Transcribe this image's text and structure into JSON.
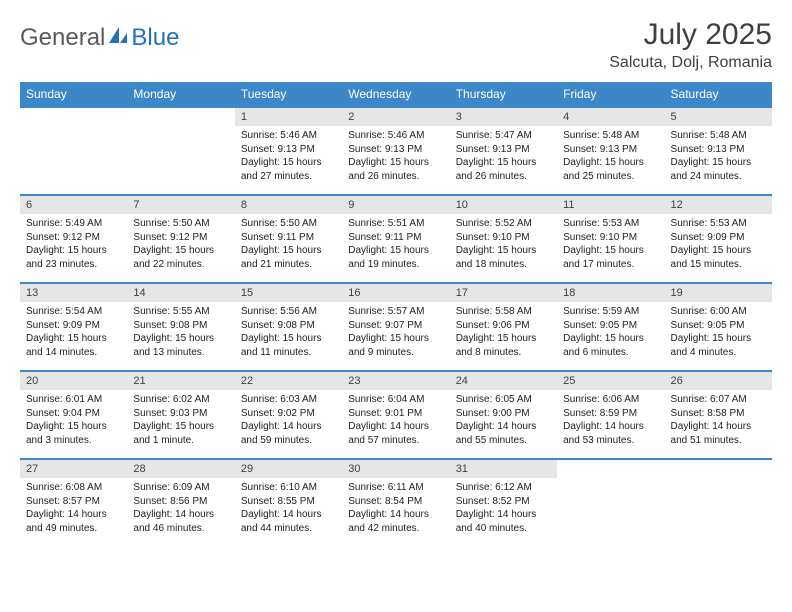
{
  "brand": {
    "general": "General",
    "blue": "Blue"
  },
  "title": "July 2025",
  "location": "Salcuta, Dolj, Romania",
  "colors": {
    "header_bg": "#3b87c8",
    "daynum_bg": "#e6e6e6",
    "text": "#404040",
    "logo_blue": "#2472b8"
  },
  "day_headers": [
    "Sunday",
    "Monday",
    "Tuesday",
    "Wednesday",
    "Thursday",
    "Friday",
    "Saturday"
  ],
  "weeks": [
    [
      null,
      null,
      {
        "n": "1",
        "sr": "Sunrise: 5:46 AM",
        "ss": "Sunset: 9:13 PM",
        "d1": "Daylight: 15 hours",
        "d2": "and 27 minutes."
      },
      {
        "n": "2",
        "sr": "Sunrise: 5:46 AM",
        "ss": "Sunset: 9:13 PM",
        "d1": "Daylight: 15 hours",
        "d2": "and 26 minutes."
      },
      {
        "n": "3",
        "sr": "Sunrise: 5:47 AM",
        "ss": "Sunset: 9:13 PM",
        "d1": "Daylight: 15 hours",
        "d2": "and 26 minutes."
      },
      {
        "n": "4",
        "sr": "Sunrise: 5:48 AM",
        "ss": "Sunset: 9:13 PM",
        "d1": "Daylight: 15 hours",
        "d2": "and 25 minutes."
      },
      {
        "n": "5",
        "sr": "Sunrise: 5:48 AM",
        "ss": "Sunset: 9:13 PM",
        "d1": "Daylight: 15 hours",
        "d2": "and 24 minutes."
      }
    ],
    [
      {
        "n": "6",
        "sr": "Sunrise: 5:49 AM",
        "ss": "Sunset: 9:12 PM",
        "d1": "Daylight: 15 hours",
        "d2": "and 23 minutes."
      },
      {
        "n": "7",
        "sr": "Sunrise: 5:50 AM",
        "ss": "Sunset: 9:12 PM",
        "d1": "Daylight: 15 hours",
        "d2": "and 22 minutes."
      },
      {
        "n": "8",
        "sr": "Sunrise: 5:50 AM",
        "ss": "Sunset: 9:11 PM",
        "d1": "Daylight: 15 hours",
        "d2": "and 21 minutes."
      },
      {
        "n": "9",
        "sr": "Sunrise: 5:51 AM",
        "ss": "Sunset: 9:11 PM",
        "d1": "Daylight: 15 hours",
        "d2": "and 19 minutes."
      },
      {
        "n": "10",
        "sr": "Sunrise: 5:52 AM",
        "ss": "Sunset: 9:10 PM",
        "d1": "Daylight: 15 hours",
        "d2": "and 18 minutes."
      },
      {
        "n": "11",
        "sr": "Sunrise: 5:53 AM",
        "ss": "Sunset: 9:10 PM",
        "d1": "Daylight: 15 hours",
        "d2": "and 17 minutes."
      },
      {
        "n": "12",
        "sr": "Sunrise: 5:53 AM",
        "ss": "Sunset: 9:09 PM",
        "d1": "Daylight: 15 hours",
        "d2": "and 15 minutes."
      }
    ],
    [
      {
        "n": "13",
        "sr": "Sunrise: 5:54 AM",
        "ss": "Sunset: 9:09 PM",
        "d1": "Daylight: 15 hours",
        "d2": "and 14 minutes."
      },
      {
        "n": "14",
        "sr": "Sunrise: 5:55 AM",
        "ss": "Sunset: 9:08 PM",
        "d1": "Daylight: 15 hours",
        "d2": "and 13 minutes."
      },
      {
        "n": "15",
        "sr": "Sunrise: 5:56 AM",
        "ss": "Sunset: 9:08 PM",
        "d1": "Daylight: 15 hours",
        "d2": "and 11 minutes."
      },
      {
        "n": "16",
        "sr": "Sunrise: 5:57 AM",
        "ss": "Sunset: 9:07 PM",
        "d1": "Daylight: 15 hours",
        "d2": "and 9 minutes."
      },
      {
        "n": "17",
        "sr": "Sunrise: 5:58 AM",
        "ss": "Sunset: 9:06 PM",
        "d1": "Daylight: 15 hours",
        "d2": "and 8 minutes."
      },
      {
        "n": "18",
        "sr": "Sunrise: 5:59 AM",
        "ss": "Sunset: 9:05 PM",
        "d1": "Daylight: 15 hours",
        "d2": "and 6 minutes."
      },
      {
        "n": "19",
        "sr": "Sunrise: 6:00 AM",
        "ss": "Sunset: 9:05 PM",
        "d1": "Daylight: 15 hours",
        "d2": "and 4 minutes."
      }
    ],
    [
      {
        "n": "20",
        "sr": "Sunrise: 6:01 AM",
        "ss": "Sunset: 9:04 PM",
        "d1": "Daylight: 15 hours",
        "d2": "and 3 minutes."
      },
      {
        "n": "21",
        "sr": "Sunrise: 6:02 AM",
        "ss": "Sunset: 9:03 PM",
        "d1": "Daylight: 15 hours",
        "d2": "and 1 minute."
      },
      {
        "n": "22",
        "sr": "Sunrise: 6:03 AM",
        "ss": "Sunset: 9:02 PM",
        "d1": "Daylight: 14 hours",
        "d2": "and 59 minutes."
      },
      {
        "n": "23",
        "sr": "Sunrise: 6:04 AM",
        "ss": "Sunset: 9:01 PM",
        "d1": "Daylight: 14 hours",
        "d2": "and 57 minutes."
      },
      {
        "n": "24",
        "sr": "Sunrise: 6:05 AM",
        "ss": "Sunset: 9:00 PM",
        "d1": "Daylight: 14 hours",
        "d2": "and 55 minutes."
      },
      {
        "n": "25",
        "sr": "Sunrise: 6:06 AM",
        "ss": "Sunset: 8:59 PM",
        "d1": "Daylight: 14 hours",
        "d2": "and 53 minutes."
      },
      {
        "n": "26",
        "sr": "Sunrise: 6:07 AM",
        "ss": "Sunset: 8:58 PM",
        "d1": "Daylight: 14 hours",
        "d2": "and 51 minutes."
      }
    ],
    [
      {
        "n": "27",
        "sr": "Sunrise: 6:08 AM",
        "ss": "Sunset: 8:57 PM",
        "d1": "Daylight: 14 hours",
        "d2": "and 49 minutes."
      },
      {
        "n": "28",
        "sr": "Sunrise: 6:09 AM",
        "ss": "Sunset: 8:56 PM",
        "d1": "Daylight: 14 hours",
        "d2": "and 46 minutes."
      },
      {
        "n": "29",
        "sr": "Sunrise: 6:10 AM",
        "ss": "Sunset: 8:55 PM",
        "d1": "Daylight: 14 hours",
        "d2": "and 44 minutes."
      },
      {
        "n": "30",
        "sr": "Sunrise: 6:11 AM",
        "ss": "Sunset: 8:54 PM",
        "d1": "Daylight: 14 hours",
        "d2": "and 42 minutes."
      },
      {
        "n": "31",
        "sr": "Sunrise: 6:12 AM",
        "ss": "Sunset: 8:52 PM",
        "d1": "Daylight: 14 hours",
        "d2": "and 40 minutes."
      },
      null,
      null
    ]
  ]
}
